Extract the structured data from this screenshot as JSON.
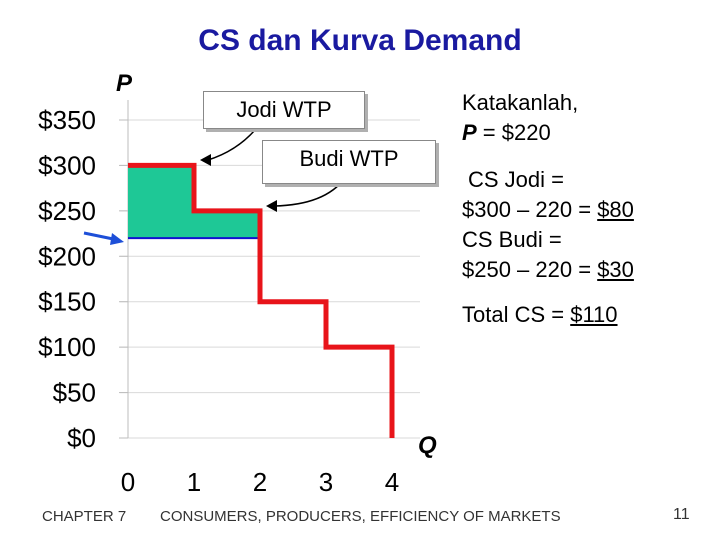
{
  "slide": {
    "title": "CS dan Kurva Demand",
    "p_label": "P",
    "q_label": "Q",
    "jodi_wtp": "Jodi WTP",
    "budi_wtp": "Budi WTP",
    "katakanlah": "Katakanlah,",
    "price_p": "P",
    "price_rest": " = $220",
    "cs_jodi_label": "CS Jodi =",
    "cs_jodi_calc": "$300 – 220 = ",
    "cs_jodi_value": "$80",
    "cs_budi_label": "CS Budi =",
    "cs_budi_calc": "$250 – 220 = ",
    "cs_budi_value": "$30",
    "total_label": "Total CS = ",
    "total_value": "$110",
    "footer_chapter": "CHAPTER 7",
    "footer_title": "CONSUMERS, PRODUCERS, EFFICIENCY OF MARKETS",
    "page_number": "11"
  },
  "chart_data": {
    "type": "line",
    "title": "CS dan Kurva Demand",
    "xlabel": "Q",
    "ylabel": "P",
    "xlim": [
      0,
      4
    ],
    "ylim": [
      0,
      350
    ],
    "x_ticks": [
      0,
      1,
      2,
      3,
      4
    ],
    "y_ticks": [
      0,
      50,
      100,
      150,
      200,
      250,
      300,
      350
    ],
    "x_tick_labels": [
      "0",
      "1",
      "2",
      "3",
      "4"
    ],
    "y_tick_labels": [
      "$0",
      "$50",
      "$100",
      "$150",
      "$200",
      "$250",
      "$300",
      "$350"
    ],
    "grid": "horizontal",
    "demand_curve": {
      "x": [
        0,
        1,
        1,
        2,
        2,
        3,
        3,
        4,
        4
      ],
      "y": [
        300,
        300,
        250,
        250,
        150,
        150,
        100,
        100,
        0
      ],
      "color": "#e8141a"
    },
    "price_line": {
      "price": 220,
      "x": [
        0,
        2
      ],
      "color": "#1010d0"
    },
    "consumer_surplus": {
      "x": [
        0,
        1,
        1,
        2,
        2,
        0
      ],
      "y": [
        300,
        300,
        250,
        250,
        220,
        220
      ],
      "color": "#1ec896"
    },
    "accent_colors": {
      "title": "#1a1aa0",
      "arrow": "#1d4fd8"
    }
  }
}
